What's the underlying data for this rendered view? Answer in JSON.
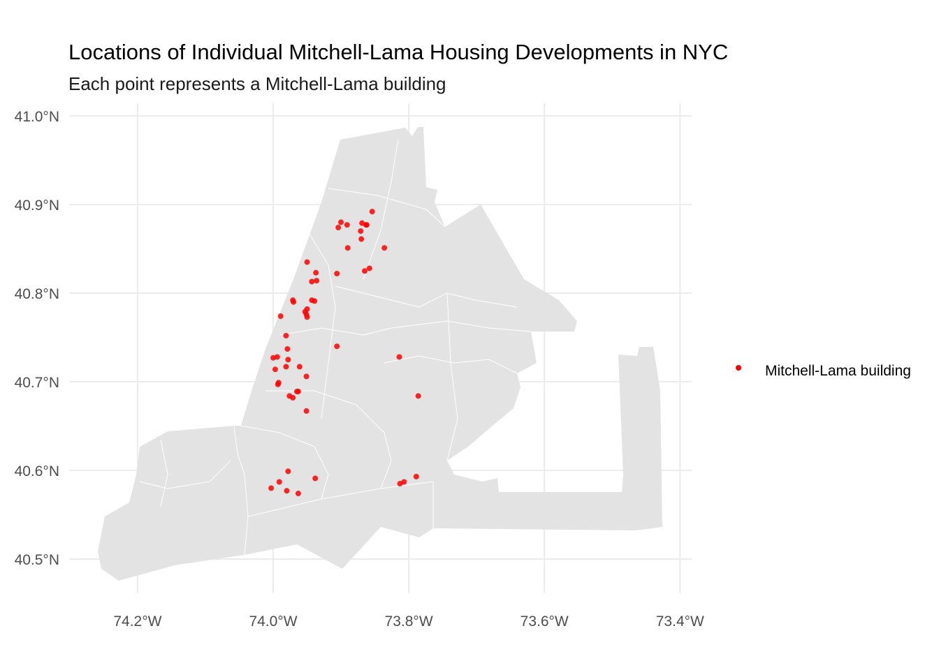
{
  "chart_data": {
    "type": "scatter",
    "title": "Locations of Individual Mitchell-Lama Housing Developments in NYC",
    "subtitle": "Each point represents a Mitchell-Lama building",
    "xlabel": "",
    "ylabel": "",
    "xlim": [
      -74.3,
      -73.38
    ],
    "ylim": [
      40.45,
      41.02
    ],
    "x_ticks": [
      {
        "value": -74.2,
        "label": "74.2°W"
      },
      {
        "value": -74.0,
        "label": "74.0°W"
      },
      {
        "value": -73.8,
        "label": "73.8°W"
      },
      {
        "value": -73.6,
        "label": "73.6°W"
      },
      {
        "value": -73.4,
        "label": "73.4°W"
      }
    ],
    "y_ticks": [
      {
        "value": 41.0,
        "label": "41.0°N"
      },
      {
        "value": 40.9,
        "label": "40.9°N"
      },
      {
        "value": 40.8,
        "label": "40.8°N"
      },
      {
        "value": 40.7,
        "label": "40.7°N"
      },
      {
        "value": 40.6,
        "label": "40.6°N"
      },
      {
        "value": 40.5,
        "label": "40.5°N"
      }
    ],
    "grid": true,
    "basemap": "NYC neighborhood boundaries (gray)",
    "legend": {
      "position": "right",
      "entries": [
        {
          "label": "Mitchell-Lama building",
          "color": "#ff0000"
        }
      ]
    },
    "point_color": "#ff0000",
    "series": [
      {
        "name": "Mitchell-Lama building",
        "points": [
          [
            -73.854,
            40.892
          ],
          [
            -73.9,
            40.88
          ],
          [
            -73.904,
            40.874
          ],
          [
            -73.891,
            40.877
          ],
          [
            -73.869,
            40.879
          ],
          [
            -73.863,
            40.877
          ],
          [
            -73.862,
            40.877
          ],
          [
            -73.871,
            40.87
          ],
          [
            -73.87,
            40.861
          ],
          [
            -73.836,
            40.851
          ],
          [
            -73.89,
            40.851
          ],
          [
            -73.95,
            40.835
          ],
          [
            -73.858,
            40.828
          ],
          [
            -73.865,
            40.825
          ],
          [
            -73.937,
            40.823
          ],
          [
            -73.906,
            40.822
          ],
          [
            -73.943,
            40.813
          ],
          [
            -73.936,
            40.814
          ],
          [
            -73.971,
            40.792
          ],
          [
            -73.97,
            40.79
          ],
          [
            -73.943,
            40.792
          ],
          [
            -73.939,
            40.791
          ],
          [
            -73.95,
            40.782
          ],
          [
            -73.953,
            40.779
          ],
          [
            -73.951,
            40.776
          ],
          [
            -73.95,
            40.773
          ],
          [
            -73.989,
            40.774
          ],
          [
            -73.981,
            40.752
          ],
          [
            -73.979,
            40.737
          ],
          [
            -73.906,
            40.74
          ],
          [
            -74.0,
            40.727
          ],
          [
            -73.994,
            40.728
          ],
          [
            -73.978,
            40.725
          ],
          [
            -73.997,
            40.714
          ],
          [
            -73.981,
            40.717
          ],
          [
            -73.961,
            40.717
          ],
          [
            -73.951,
            40.706
          ],
          [
            -73.814,
            40.728
          ],
          [
            -73.992,
            40.699
          ],
          [
            -73.993,
            40.697
          ],
          [
            -73.965,
            40.689
          ],
          [
            -73.963,
            40.689
          ],
          [
            -73.976,
            40.684
          ],
          [
            -73.971,
            40.682
          ],
          [
            -73.786,
            40.684
          ],
          [
            -73.951,
            40.667
          ],
          [
            -73.978,
            40.599
          ],
          [
            -73.938,
            40.591
          ],
          [
            -73.991,
            40.587
          ],
          [
            -74.003,
            40.58
          ],
          [
            -73.98,
            40.577
          ],
          [
            -73.963,
            40.574
          ],
          [
            -73.789,
            40.593
          ],
          [
            -73.807,
            40.587
          ],
          [
            -73.813,
            40.585
          ]
        ]
      }
    ]
  }
}
